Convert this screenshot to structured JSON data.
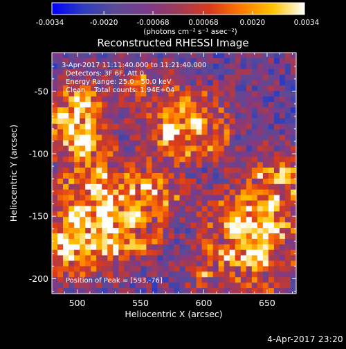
{
  "colorbar": {
    "min": -0.0034,
    "max": 0.0034,
    "tick_labels": [
      "-0.0034",
      "-0.0020",
      "-0.00068",
      "0.00068",
      "0.0020",
      "0.0034"
    ],
    "tick_values": [
      -0.0034,
      -0.002,
      -0.00068,
      0.00068,
      0.002,
      0.0034
    ],
    "unit_label": "(photons cm⁻² s⁻¹ asec⁻²)",
    "colormap": [
      "#0000ff",
      "#2e3dbd",
      "#5c4a94",
      "#7b3a8a",
      "#a03a58",
      "#d83a1c",
      "#ff7a00",
      "#ffc400",
      "#ffffff"
    ]
  },
  "chart_data": {
    "type": "heatmap",
    "title": "Reconstructed RHESSI Image",
    "xlabel": "Heliocentric X (arcsec)",
    "ylabel": "Heliocentric Y (arcsec)",
    "xlim": [
      480,
      673
    ],
    "ylim": [
      -212,
      -19
    ],
    "x_tick_labels": [
      "500",
      "550",
      "600",
      "650"
    ],
    "x_ticks": [
      500,
      550,
      600,
      650
    ],
    "y_tick_labels": [
      "-50",
      "-100",
      "-150",
      "-200"
    ],
    "y_ticks": [
      -50,
      -100,
      -150,
      -200
    ],
    "grid": false,
    "value_range": [
      -0.0034,
      0.0034
    ],
    "grid_cells": [
      44,
      44
    ],
    "annotations": [
      "3-Apr-2017 11:11:40.000 to 11:21:40.000",
      "Detectors: 3F 6F, Att 0",
      "Energy Range: 25.0 - 50.0 keV",
      "Clean    Total counts: 1.94E+04"
    ],
    "peak_label": "Position of Peak = [593,-76]",
    "peak": [
      593,
      -76
    ]
  },
  "footer": {
    "timestamp": "4-Apr-2017 23:20"
  }
}
